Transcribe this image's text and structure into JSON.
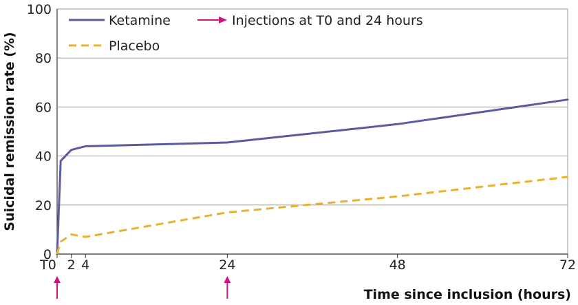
{
  "chart_data": {
    "type": "line",
    "xlabel": "Time since inclusion (hours)",
    "ylabel": "Suicidal remission rate (%)",
    "xlim": [
      0,
      72
    ],
    "ylim": [
      0,
      100
    ],
    "grid": true,
    "legend_position": "top-left",
    "x_ticks": [
      {
        "value": 0,
        "label": "T0"
      },
      {
        "value": 2,
        "label": "2"
      },
      {
        "value": 4,
        "label": "4"
      },
      {
        "value": 24,
        "label": "24"
      },
      {
        "value": 48,
        "label": "48"
      },
      {
        "value": 72,
        "label": "72"
      }
    ],
    "y_ticks": [
      0,
      20,
      40,
      60,
      80,
      100
    ],
    "series": [
      {
        "name": "Ketamine",
        "color": "#5B5BA0",
        "style": "solid",
        "x": [
          0,
          0.5,
          2,
          4,
          24,
          48,
          72
        ],
        "y": [
          0,
          38,
          42.5,
          44,
          45.5,
          53,
          63
        ]
      },
      {
        "name": "Placebo",
        "color": "#E8B030",
        "style": "dashed",
        "x": [
          0,
          0.5,
          2,
          4,
          24,
          48,
          72
        ],
        "y": [
          0,
          5,
          8,
          7,
          17,
          23.5,
          31.5
        ]
      }
    ],
    "annotations": [
      {
        "name": "Injections at T0 and 24 hours",
        "color": "#C8157F",
        "x": [
          0,
          24
        ]
      }
    ]
  }
}
